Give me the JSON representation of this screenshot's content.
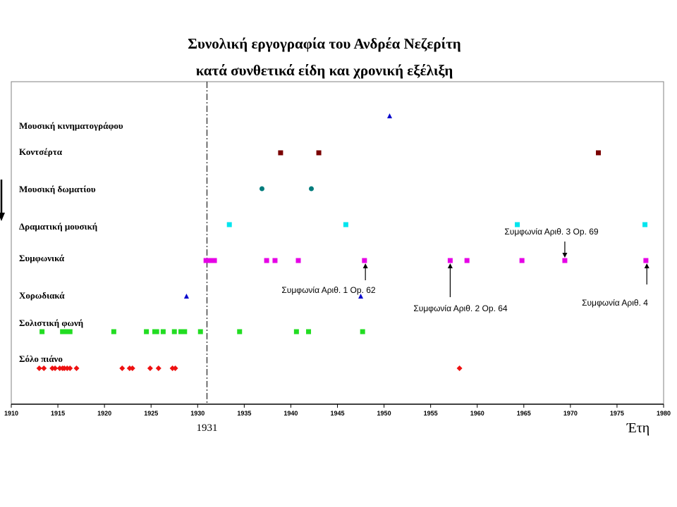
{
  "chart_data": {
    "type": "scatter",
    "title": "Συνολική εργογραφία του Ανδρέα Νεζερίτη",
    "subtitle": "κατά συνθετικά είδη και χρονική εξέλιξη",
    "xlabel": "Έτη",
    "xlim": [
      1910,
      1980
    ],
    "xticks": [
      1910,
      1915,
      1920,
      1925,
      1930,
      1935,
      1940,
      1945,
      1950,
      1955,
      1960,
      1965,
      1970,
      1975,
      1980
    ],
    "reference_line": {
      "x": 1931,
      "label": "1931"
    },
    "grid": false,
    "series": [
      {
        "name": "Μουσική κινηματογράφου",
        "marker": "triangle",
        "color": "#0000cc",
        "x": [
          1950.6
        ]
      },
      {
        "name": "Κοντσέρτα",
        "marker": "square",
        "color": "#7a0000",
        "x": [
          1938.9,
          1943.0,
          1973.0
        ]
      },
      {
        "name": "Μουσική δωματίου",
        "marker": "circle",
        "color": "#007c7c",
        "x": [
          1936.9,
          1942.2
        ]
      },
      {
        "name": "Δραματική μουσική",
        "marker": "square",
        "color": "#00e5ee",
        "x": [
          1933.4,
          1945.9,
          1964.3,
          1978.0
        ]
      },
      {
        "name": "Συμφωνικά",
        "marker": "square",
        "color": "#e600e6",
        "x": [
          1930.9,
          1931.3,
          1931.8,
          1937.4,
          1938.3,
          1940.8,
          1947.9,
          1957.1,
          1958.9,
          1964.8,
          1969.4,
          1978.1
        ]
      },
      {
        "name": "Χορωδιακά",
        "marker": "triangle",
        "color": "#0000cc",
        "x": [
          1928.8,
          1947.5
        ]
      },
      {
        "name": "Σολιστική φωνή",
        "marker": "square",
        "color": "#22dd22",
        "x": [
          1913.3,
          1915.5,
          1916.0,
          1916.3,
          1921.0,
          1924.5,
          1925.4,
          1925.6,
          1926.3,
          1927.5,
          1928.2,
          1928.6,
          1930.3,
          1934.5,
          1940.6,
          1941.9,
          1947.7
        ]
      },
      {
        "name": "Σόλο πιάνο",
        "marker": "diamond",
        "color": "#ee1111",
        "x": [
          1913.0,
          1913.5,
          1914.4,
          1914.7,
          1915.2,
          1915.5,
          1915.7,
          1916.0,
          1916.3,
          1917.0,
          1921.9,
          1922.7,
          1923.0,
          1924.9,
          1925.8,
          1927.3,
          1927.6,
          1958.1
        ]
      }
    ],
    "annotations": [
      {
        "text": "Συμφωνία Αριθ. 1 Op. 62",
        "x": 1948.0
      },
      {
        "text": "Συμφωνία Αριθ. 2 Op. 64",
        "x": 1957.1
      },
      {
        "text": "Συμφωνία Αριθ. 3 Op. 69",
        "x": 1969.4
      },
      {
        "text": "Συμφωνία Αριθ. 4",
        "x": 1978.2
      }
    ]
  }
}
